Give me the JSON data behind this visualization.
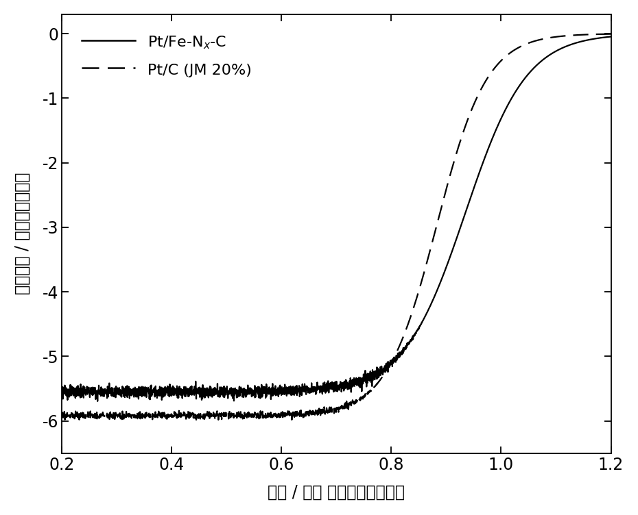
{
  "xlim": [
    0.2,
    1.2
  ],
  "ylim": [
    -6.5,
    0.3
  ],
  "xticks": [
    0.2,
    0.4,
    0.6,
    0.8,
    1.0,
    1.2
  ],
  "yticks": [
    0,
    -1,
    -2,
    -3,
    -4,
    -5,
    -6
  ],
  "xlabel": "电压 / 伏特 相对于可逆氢电极",
  "ylabel": "电流密度 / 毫安每平方厘米",
  "legend1": "Pt/Fe-N$_x$-C",
  "legend2": "Pt/C (JM 20%)",
  "line1_color": "#000000",
  "line2_color": "#000000",
  "background_color": "#ffffff",
  "solid_plateau": -5.55,
  "dashed_plateau": -5.92,
  "solid_halfwave": 0.935,
  "dashed_halfwave": 0.883,
  "solid_slope": 18,
  "dashed_slope": 22
}
